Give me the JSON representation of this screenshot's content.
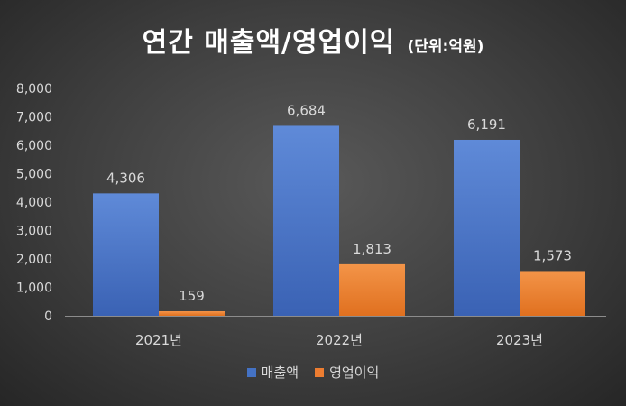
{
  "chart_data": {
    "type": "bar",
    "title": "연간 매출액/영업이익",
    "unit_label": "(단위:억원)",
    "categories": [
      "2021년",
      "2022년",
      "2023년"
    ],
    "series": [
      {
        "name": "매출액",
        "values": [
          4306,
          6684,
          6191
        ],
        "labels": [
          "4,306",
          "6,684",
          "6,191"
        ],
        "color": "#4472C4"
      },
      {
        "name": "영업이익",
        "values": [
          159,
          1813,
          1573
        ],
        "labels": [
          "159",
          "1,813",
          "1,573"
        ],
        "color": "#ED7D31"
      }
    ],
    "ylim": [
      0,
      8000
    ],
    "yticks": [
      0,
      1000,
      2000,
      3000,
      4000,
      5000,
      6000,
      7000,
      8000
    ],
    "ytick_labels": [
      "0",
      "1,000",
      "2,000",
      "3,000",
      "4,000",
      "5,000",
      "6,000",
      "7,000",
      "8,000"
    ],
    "grid": false,
    "legend_position": "bottom"
  }
}
